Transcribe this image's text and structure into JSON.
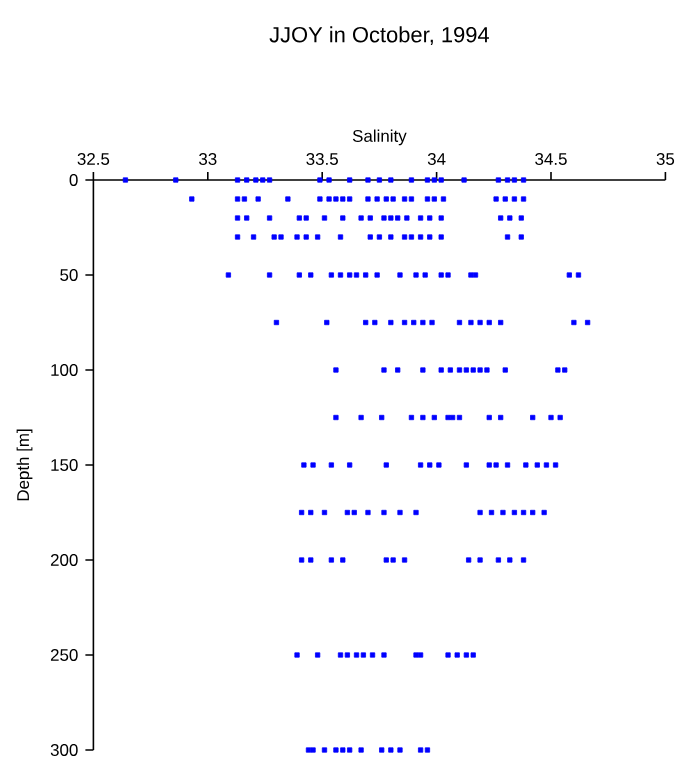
{
  "chart_data": {
    "type": "scatter",
    "title": "JJOY in October, 1994",
    "xlabel": "Salinity",
    "ylabel": "Depth [m]",
    "xlim": [
      32.5,
      35
    ],
    "xticks": [
      32.5,
      33,
      33.5,
      34,
      34.5,
      35
    ],
    "ylim": [
      300,
      0
    ],
    "yticks": [
      0,
      50,
      100,
      150,
      200,
      250,
      300
    ],
    "marker": "square",
    "grid": false,
    "series": [
      {
        "color": "#0000ff",
        "x": [
          32.64,
          32.86,
          33.13,
          33.17,
          33.21,
          33.24,
          33.27,
          33.49,
          33.53,
          33.62,
          33.7,
          33.75,
          33.8,
          33.89,
          33.96,
          33.99,
          34.02,
          34.12,
          34.27,
          34.31,
          34.34,
          34.38,
          32.93,
          33.13,
          33.16,
          33.22,
          33.35,
          33.49,
          33.53,
          33.56,
          33.59,
          33.62,
          33.7,
          33.74,
          33.78,
          33.81,
          33.86,
          33.89,
          33.96,
          33.99,
          34.03,
          34.26,
          34.3,
          34.34,
          34.38,
          33.13,
          33.17,
          33.27,
          33.4,
          33.43,
          33.51,
          33.59,
          33.67,
          33.71,
          33.77,
          33.8,
          33.83,
          33.87,
          33.93,
          33.97,
          34.02,
          34.28,
          34.32,
          34.37,
          33.13,
          33.2,
          33.29,
          33.32,
          33.39,
          33.43,
          33.48,
          33.58,
          33.71,
          33.75,
          33.8,
          33.86,
          33.89,
          33.93,
          33.97,
          34.02,
          34.31,
          34.37,
          33.09,
          33.27,
          33.4,
          33.45,
          33.54,
          33.58,
          33.62,
          33.65,
          33.69,
          33.74,
          33.84,
          33.91,
          33.95,
          34.02,
          34.05,
          34.15,
          34.17,
          34.58,
          34.62,
          33.3,
          33.52,
          33.69,
          33.73,
          33.8,
          33.86,
          33.9,
          33.94,
          33.98,
          34.1,
          34.15,
          34.19,
          34.23,
          34.28,
          34.6,
          34.66,
          33.56,
          33.77,
          33.83,
          33.94,
          34.02,
          34.06,
          34.1,
          34.13,
          34.16,
          34.19,
          34.22,
          34.3,
          34.53,
          34.56,
          33.56,
          33.67,
          33.76,
          33.89,
          33.94,
          33.99,
          34.05,
          34.07,
          34.1,
          34.23,
          34.28,
          34.42,
          34.5,
          34.54,
          33.42,
          33.46,
          33.54,
          33.62,
          33.78,
          33.93,
          33.97,
          34.01,
          34.13,
          34.23,
          34.26,
          34.31,
          34.39,
          34.44,
          34.48,
          34.52,
          33.41,
          33.45,
          33.51,
          33.61,
          33.64,
          33.7,
          33.77,
          33.84,
          33.91,
          34.19,
          34.24,
          34.29,
          34.34,
          34.38,
          34.42,
          34.47,
          33.41,
          33.45,
          33.54,
          33.59,
          33.78,
          33.81,
          33.86,
          34.14,
          34.19,
          34.27,
          34.32,
          34.38,
          33.39,
          33.48,
          33.58,
          33.61,
          33.65,
          33.68,
          33.72,
          33.77,
          33.91,
          33.93,
          34.05,
          34.09,
          34.13,
          34.16,
          33.44,
          33.46,
          33.51,
          33.56,
          33.59,
          33.62,
          33.67,
          33.76,
          33.8,
          33.84,
          33.93,
          33.96
        ],
        "values": [
          0,
          0,
          0,
          0,
          0,
          0,
          0,
          0,
          0,
          0,
          0,
          0,
          0,
          0,
          0,
          0,
          0,
          0,
          0,
          0,
          0,
          0,
          10,
          10,
          10,
          10,
          10,
          10,
          10,
          10,
          10,
          10,
          10,
          10,
          10,
          10,
          10,
          10,
          10,
          10,
          10,
          10,
          10,
          10,
          10,
          20,
          20,
          20,
          20,
          20,
          20,
          20,
          20,
          20,
          20,
          20,
          20,
          20,
          20,
          20,
          20,
          20,
          20,
          20,
          30,
          30,
          30,
          30,
          30,
          30,
          30,
          30,
          30,
          30,
          30,
          30,
          30,
          30,
          30,
          30,
          30,
          30,
          50,
          50,
          50,
          50,
          50,
          50,
          50,
          50,
          50,
          50,
          50,
          50,
          50,
          50,
          50,
          50,
          50,
          50,
          50,
          75,
          75,
          75,
          75,
          75,
          75,
          75,
          75,
          75,
          75,
          75,
          75,
          75,
          75,
          75,
          75,
          100,
          100,
          100,
          100,
          100,
          100,
          100,
          100,
          100,
          100,
          100,
          100,
          100,
          100,
          125,
          125,
          125,
          125,
          125,
          125,
          125,
          125,
          125,
          125,
          125,
          125,
          125,
          125,
          150,
          150,
          150,
          150,
          150,
          150,
          150,
          150,
          150,
          150,
          150,
          150,
          150,
          150,
          150,
          150,
          175,
          175,
          175,
          175,
          175,
          175,
          175,
          175,
          175,
          175,
          175,
          175,
          175,
          175,
          175,
          175,
          200,
          200,
          200,
          200,
          200,
          200,
          200,
          200,
          200,
          200,
          200,
          200,
          250,
          250,
          250,
          250,
          250,
          250,
          250,
          250,
          250,
          250,
          250,
          250,
          250,
          250,
          300,
          300,
          300,
          300,
          300,
          300,
          300,
          300,
          300,
          300,
          300,
          300
        ]
      }
    ]
  }
}
